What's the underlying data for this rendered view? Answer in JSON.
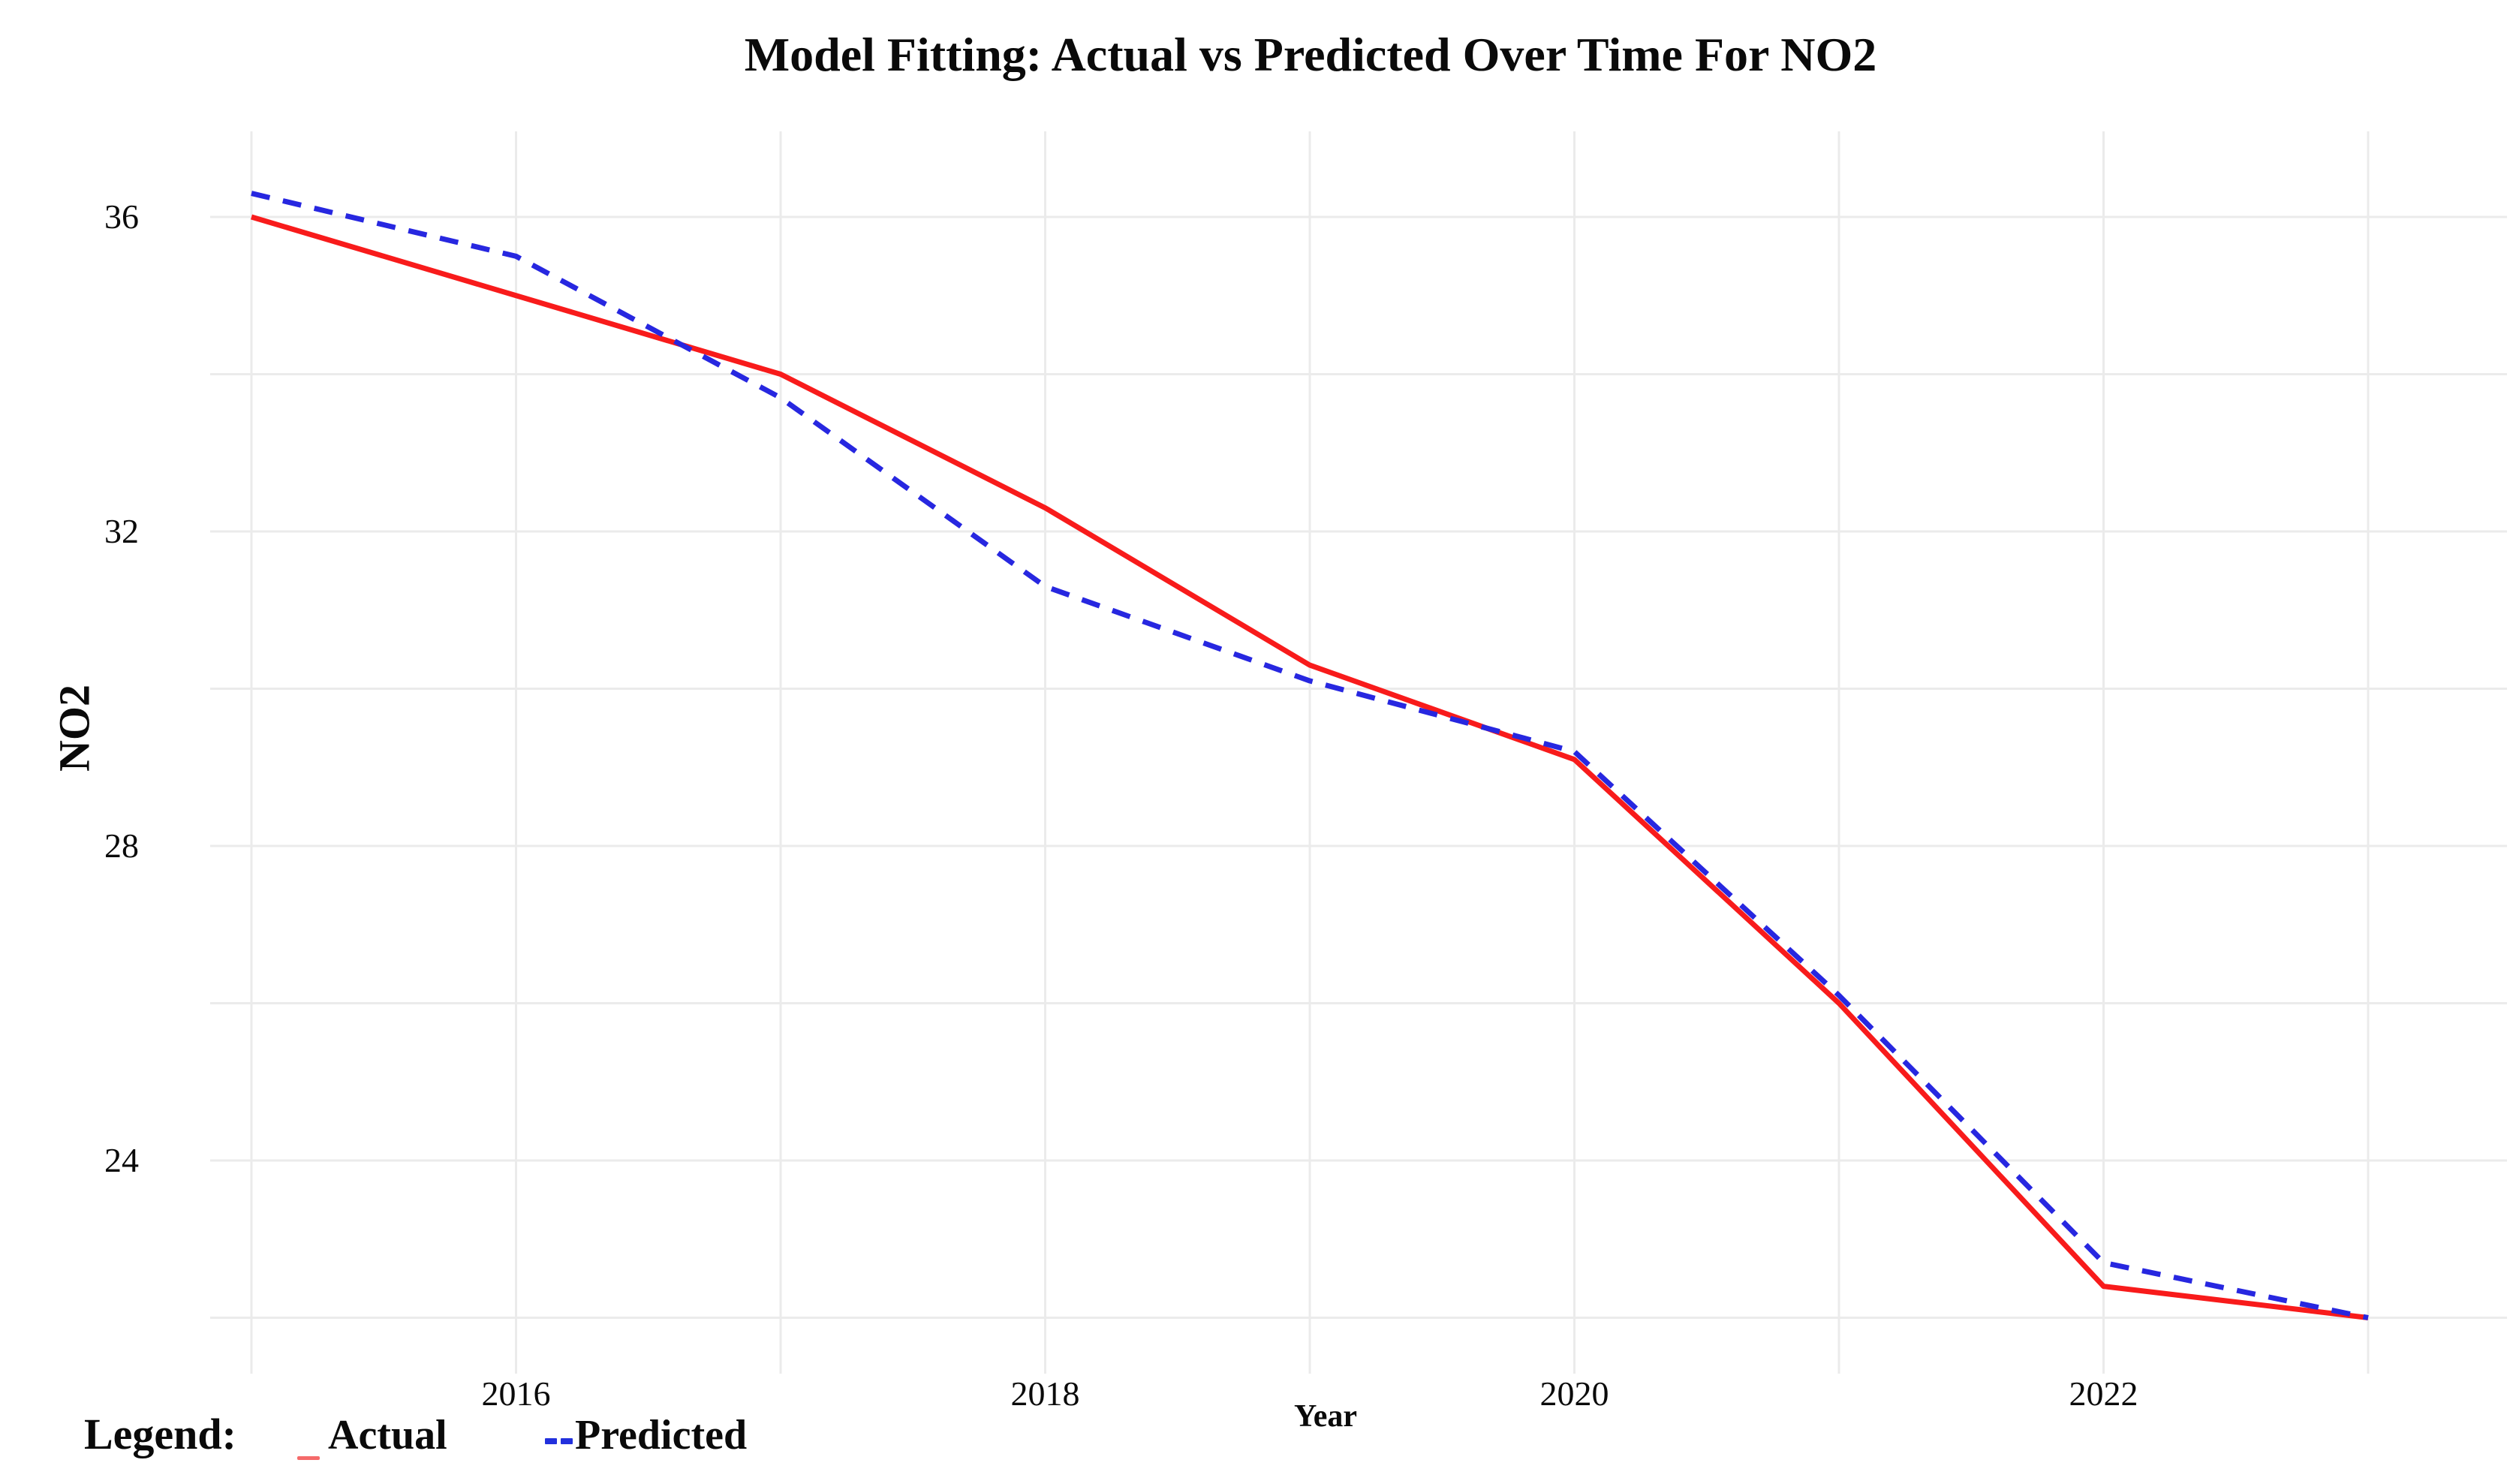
{
  "chart_data": {
    "type": "line",
    "title": "Model Fitting: Actual vs Predicted Over Time For NO2",
    "xlabel": "Year",
    "ylabel": "NO2",
    "x": [
      2015,
      2016,
      2017,
      2018,
      2019,
      2020,
      2021,
      2022,
      2023
    ],
    "series": [
      {
        "name": "Actual",
        "style": "solid",
        "values": [
          36.0,
          35.0,
          34.0,
          32.3,
          30.3,
          29.1,
          26.0,
          22.4,
          22.0
        ]
      },
      {
        "name": "Predicted",
        "style": "dashed",
        "values": [
          36.3,
          35.5,
          33.7,
          31.3,
          30.1,
          29.2,
          26.1,
          22.7,
          22.0
        ]
      }
    ],
    "xlim": [
      2014.8,
      2023.5
    ],
    "ylim": [
      21.3,
      37.1
    ],
    "x_ticks": [
      {
        "value": 2016,
        "label": "2016"
      },
      {
        "value": 2018,
        "label": "2018"
      },
      {
        "value": 2020,
        "label": "2020"
      },
      {
        "value": 2022,
        "label": "2022"
      }
    ],
    "y_ticks": [
      {
        "value": 36,
        "label": "36"
      },
      {
        "value": 32,
        "label": "32"
      },
      {
        "value": 28,
        "label": "28"
      },
      {
        "value": 24,
        "label": "24"
      }
    ],
    "x_gridlines": [
      2015,
      2016,
      2017,
      2018,
      2019,
      2020,
      2021,
      2022,
      2023
    ],
    "y_gridlines": [
      22,
      24,
      26,
      28,
      30,
      32,
      34,
      36
    ],
    "grid": true,
    "legend": {
      "position": "bottom-left",
      "prefix": "Legend:",
      "entries": [
        {
          "label": "Actual"
        },
        {
          "label": "Predicted"
        }
      ]
    }
  },
  "colors": {
    "actual_line": "#f81b1b",
    "predicted_line": "#2727e0",
    "legend_actual_marker": "#f56a6a",
    "legend_predicted_marker": "#2230dd",
    "grid": "#ebebeb",
    "text": "#0a0a0a",
    "background": "#ffffff"
  }
}
